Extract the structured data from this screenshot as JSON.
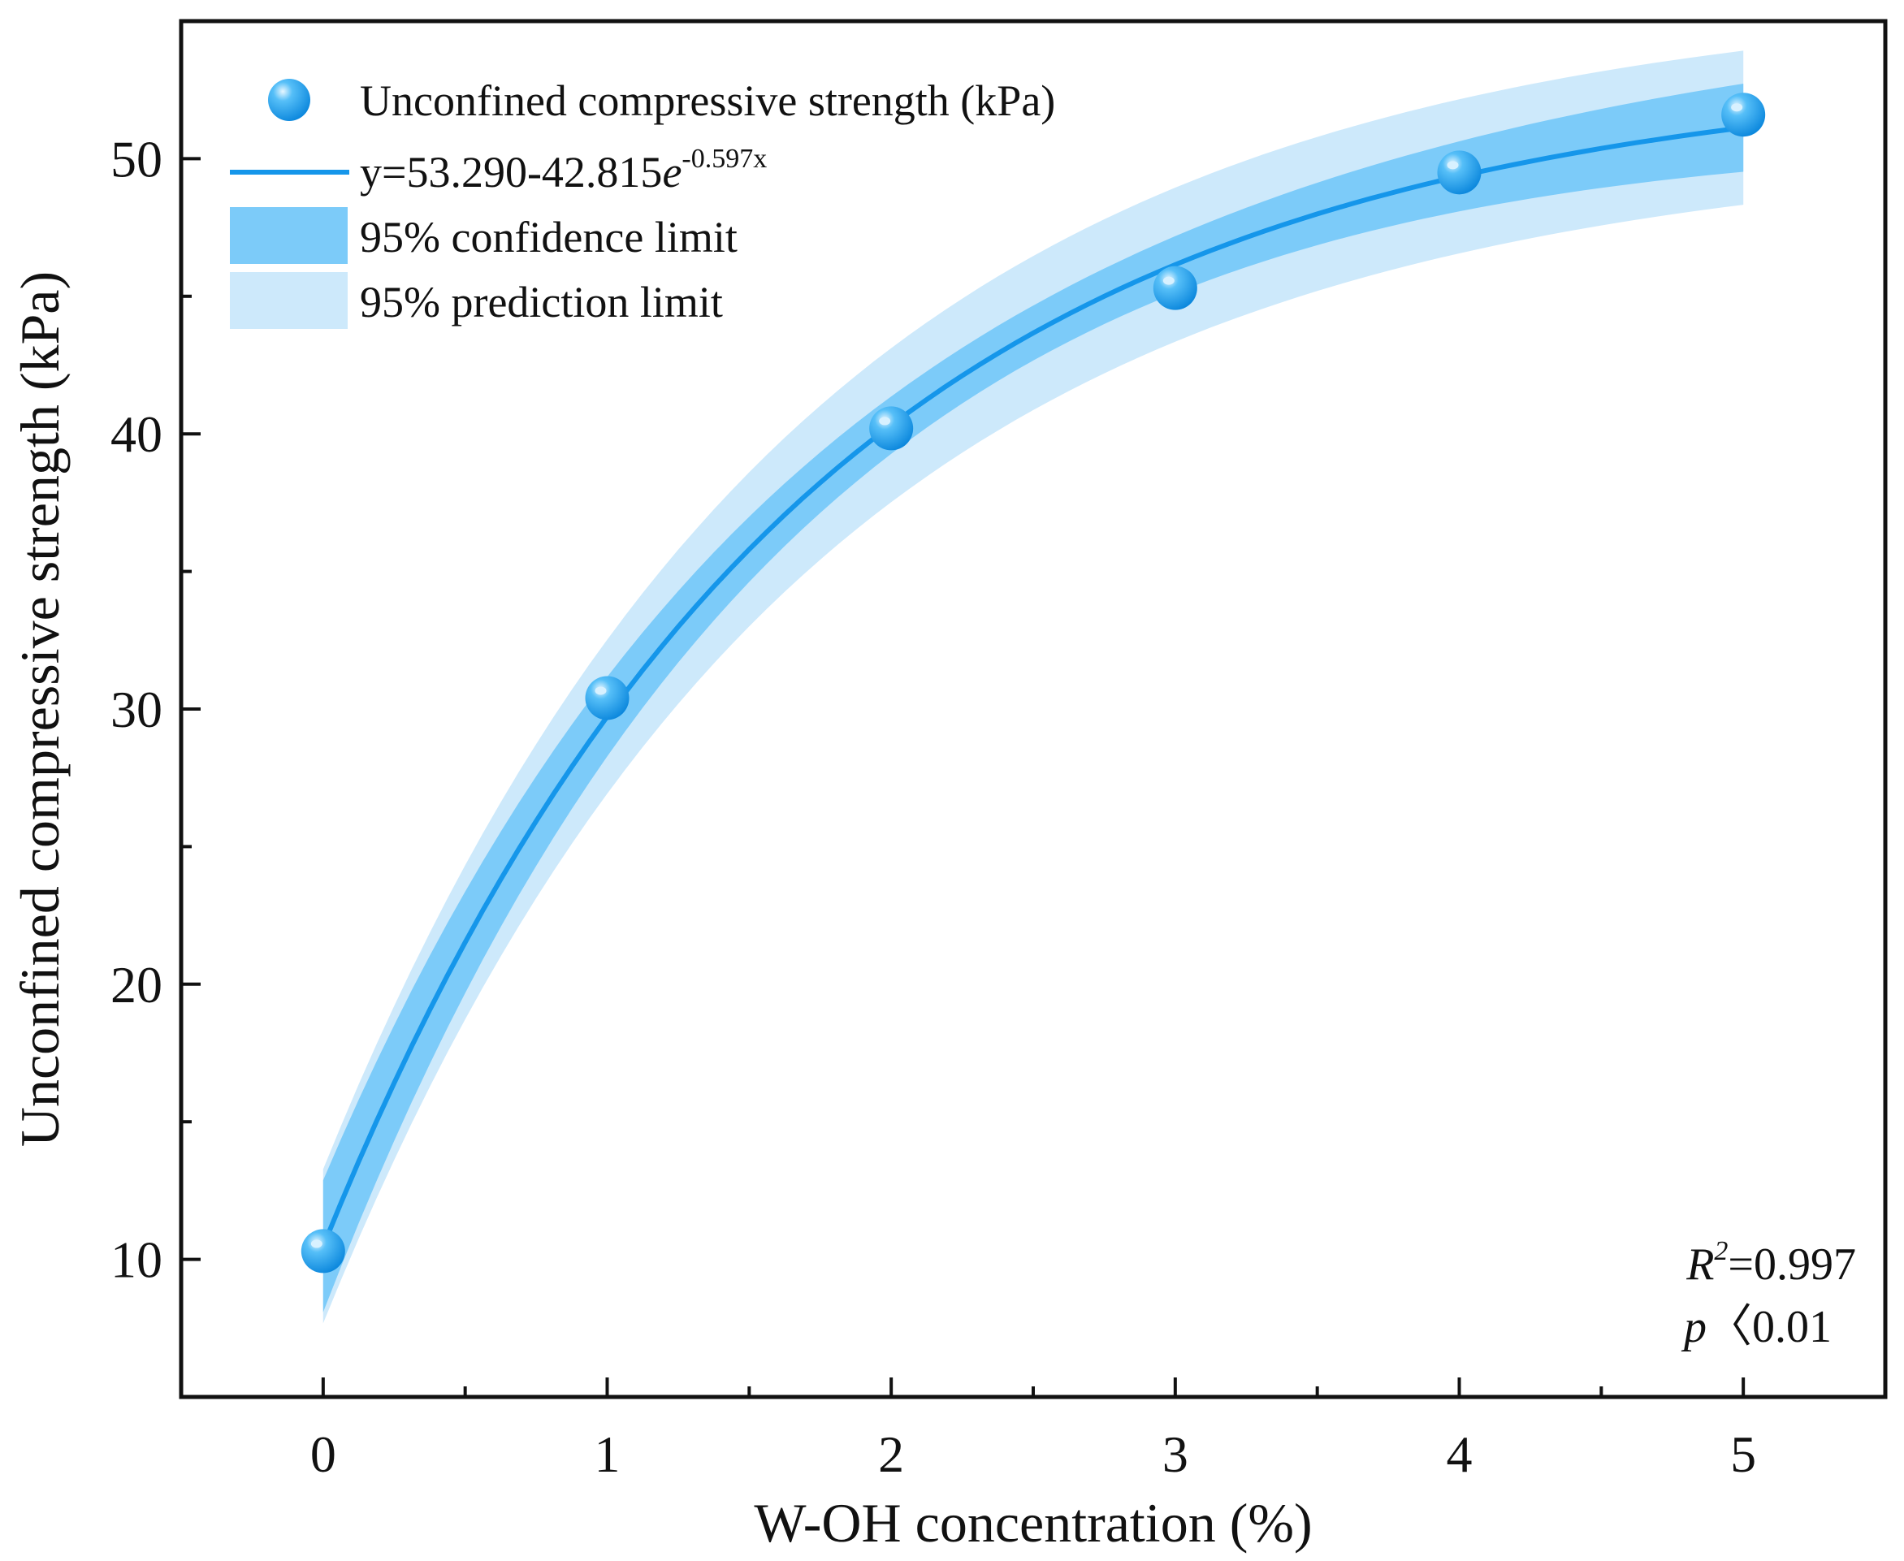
{
  "chart_data": {
    "type": "scatter",
    "xlabel": "W-OH concentration (%)",
    "ylabel": "Unconfined compressive strength (kPa)",
    "xlim": [
      -0.5,
      5.5
    ],
    "ylim": [
      5,
      55
    ],
    "xticks": [
      0,
      1,
      2,
      3,
      4,
      5
    ],
    "yticks": [
      10,
      20,
      30,
      40,
      50
    ],
    "xtick_labels": [
      "0",
      "1",
      "2",
      "3",
      "4",
      "5"
    ],
    "ytick_labels": [
      "10",
      "20",
      "30",
      "40",
      "50"
    ],
    "grid": false,
    "legend_position": "top-left",
    "series": [
      {
        "name": "Unconfined compressive strength (kPa)",
        "kind": "scatter",
        "x": [
          0,
          1,
          2,
          3,
          4,
          5
        ],
        "y": [
          10.3,
          30.4,
          40.2,
          45.3,
          49.5,
          51.6
        ]
      },
      {
        "name": "fit",
        "kind": "line",
        "equation_prefix": "y=53.290-42.815",
        "equation_base": "e",
        "equation_exponent": "-0.597x",
        "a": 53.29,
        "b": 42.815,
        "k": 0.597,
        "x_range": [
          0,
          5
        ]
      }
    ],
    "bands": [
      {
        "name": "95% confidence limit",
        "half_width_ends": [
          2.4,
          1.6
        ],
        "half_width_mid": 1.0
      },
      {
        "name": "95% prediction limit",
        "half_width": 2.8
      }
    ],
    "annotations": {
      "r2_symbol": "R",
      "r2_superscript": "2",
      "r2_value": "=0.997",
      "p_symbol": "p",
      "p_value": "〈0.01"
    },
    "colors": {
      "marker": "#1a9ff0",
      "marker_highlight": "#d8f1ff",
      "line": "#1596ea",
      "confidence_band": "#7ccbf9",
      "prediction_band": "#cde9fb",
      "axis": "#111111"
    }
  }
}
